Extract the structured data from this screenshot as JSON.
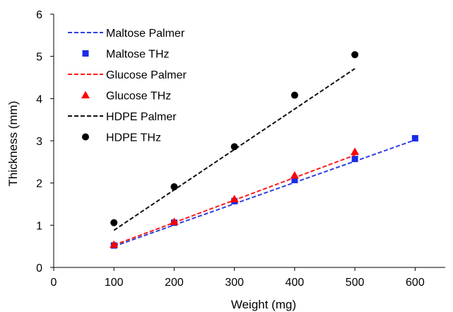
{
  "chart_data": {
    "type": "scatter",
    "title": "",
    "xlabel": "Weight (mg)",
    "ylabel": "Thickness (mm)",
    "xlim": [
      0,
      650
    ],
    "ylim": [
      0,
      6
    ],
    "xticks": [
      0,
      100,
      200,
      300,
      400,
      500,
      600
    ],
    "yticks": [
      0,
      1,
      2,
      3,
      4,
      5,
      6
    ],
    "grid": false,
    "legend_position": "top-left",
    "series": [
      {
        "name": "Maltose Palmer",
        "kind": "line",
        "style": "dashed",
        "color": "#2f3fe0",
        "x": [
          100,
          600
        ],
        "y": [
          0.5,
          3.02
        ]
      },
      {
        "name": "Maltose THz",
        "kind": "marker",
        "marker": "square",
        "color": "#1a2de6",
        "x": [
          100,
          200,
          300,
          400,
          500,
          600
        ],
        "y": [
          0.52,
          1.06,
          1.57,
          2.07,
          2.57,
          3.06
        ]
      },
      {
        "name": "Glucose Palmer",
        "kind": "line",
        "style": "dashed",
        "color": "#ff1a1a",
        "x": [
          100,
          500
        ],
        "y": [
          0.53,
          2.66
        ]
      },
      {
        "name": "Glucose THz",
        "kind": "marker",
        "marker": "triangle",
        "color": "#ff0000",
        "x": [
          100,
          200,
          300,
          400,
          500
        ],
        "y": [
          0.54,
          1.08,
          1.62,
          2.18,
          2.74
        ]
      },
      {
        "name": "HDPE Palmer",
        "kind": "line",
        "style": "dashed",
        "color": "#111111",
        "x": [
          100,
          500
        ],
        "y": [
          0.88,
          4.71
        ]
      },
      {
        "name": "HDPE THz",
        "kind": "marker",
        "marker": "circle",
        "color": "#000000",
        "x": [
          100,
          200,
          300,
          400,
          500
        ],
        "y": [
          1.06,
          1.91,
          2.86,
          4.08,
          5.04
        ]
      }
    ]
  }
}
